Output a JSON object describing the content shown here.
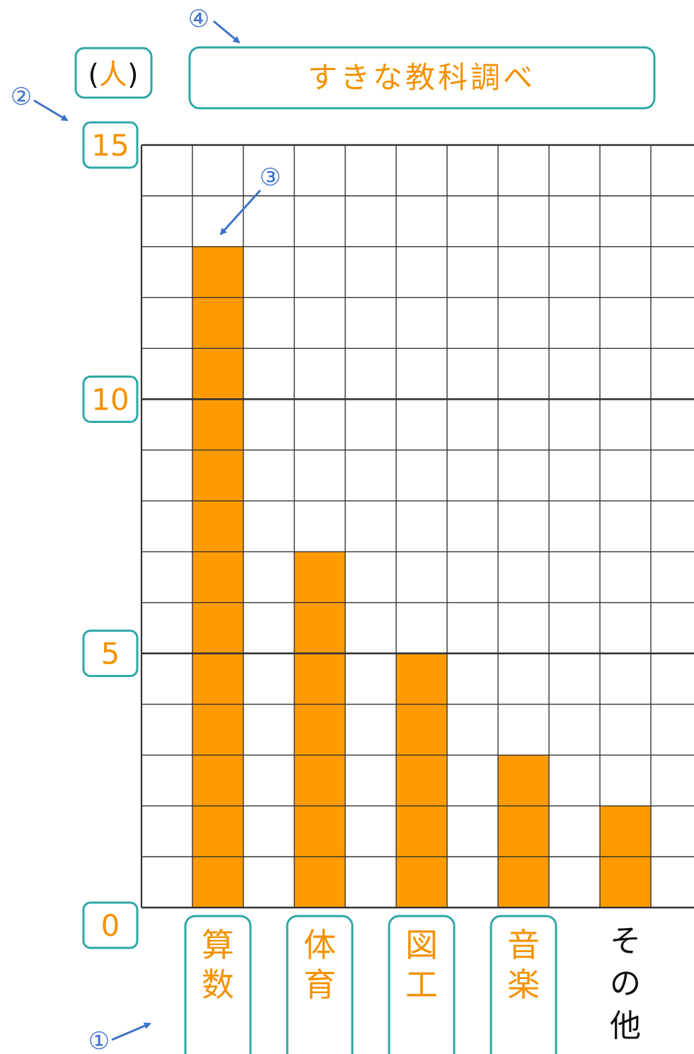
{
  "colors": {
    "bar": "#FF9B00",
    "label_text": "#F39200",
    "box_border": "#2EA6A6",
    "arrow": "#3D72C8",
    "grid": "#333333",
    "plain_text": "#111111"
  },
  "chart_data": {
    "type": "bar",
    "title": "すきな教科調べ",
    "unit_label_open": "(",
    "unit_label_unit": "人",
    "unit_label_close": ")",
    "categories": [
      "算数",
      "体育",
      "図工",
      "音楽",
      "その他"
    ],
    "values": [
      13,
      7,
      5,
      3,
      2
    ],
    "ylim": [
      0,
      15
    ],
    "y_ticks": [
      "0",
      "5",
      "10",
      "15"
    ],
    "grid": true
  },
  "markers": {
    "m1": "①",
    "m2": "②",
    "m3": "③",
    "m4": "④"
  }
}
